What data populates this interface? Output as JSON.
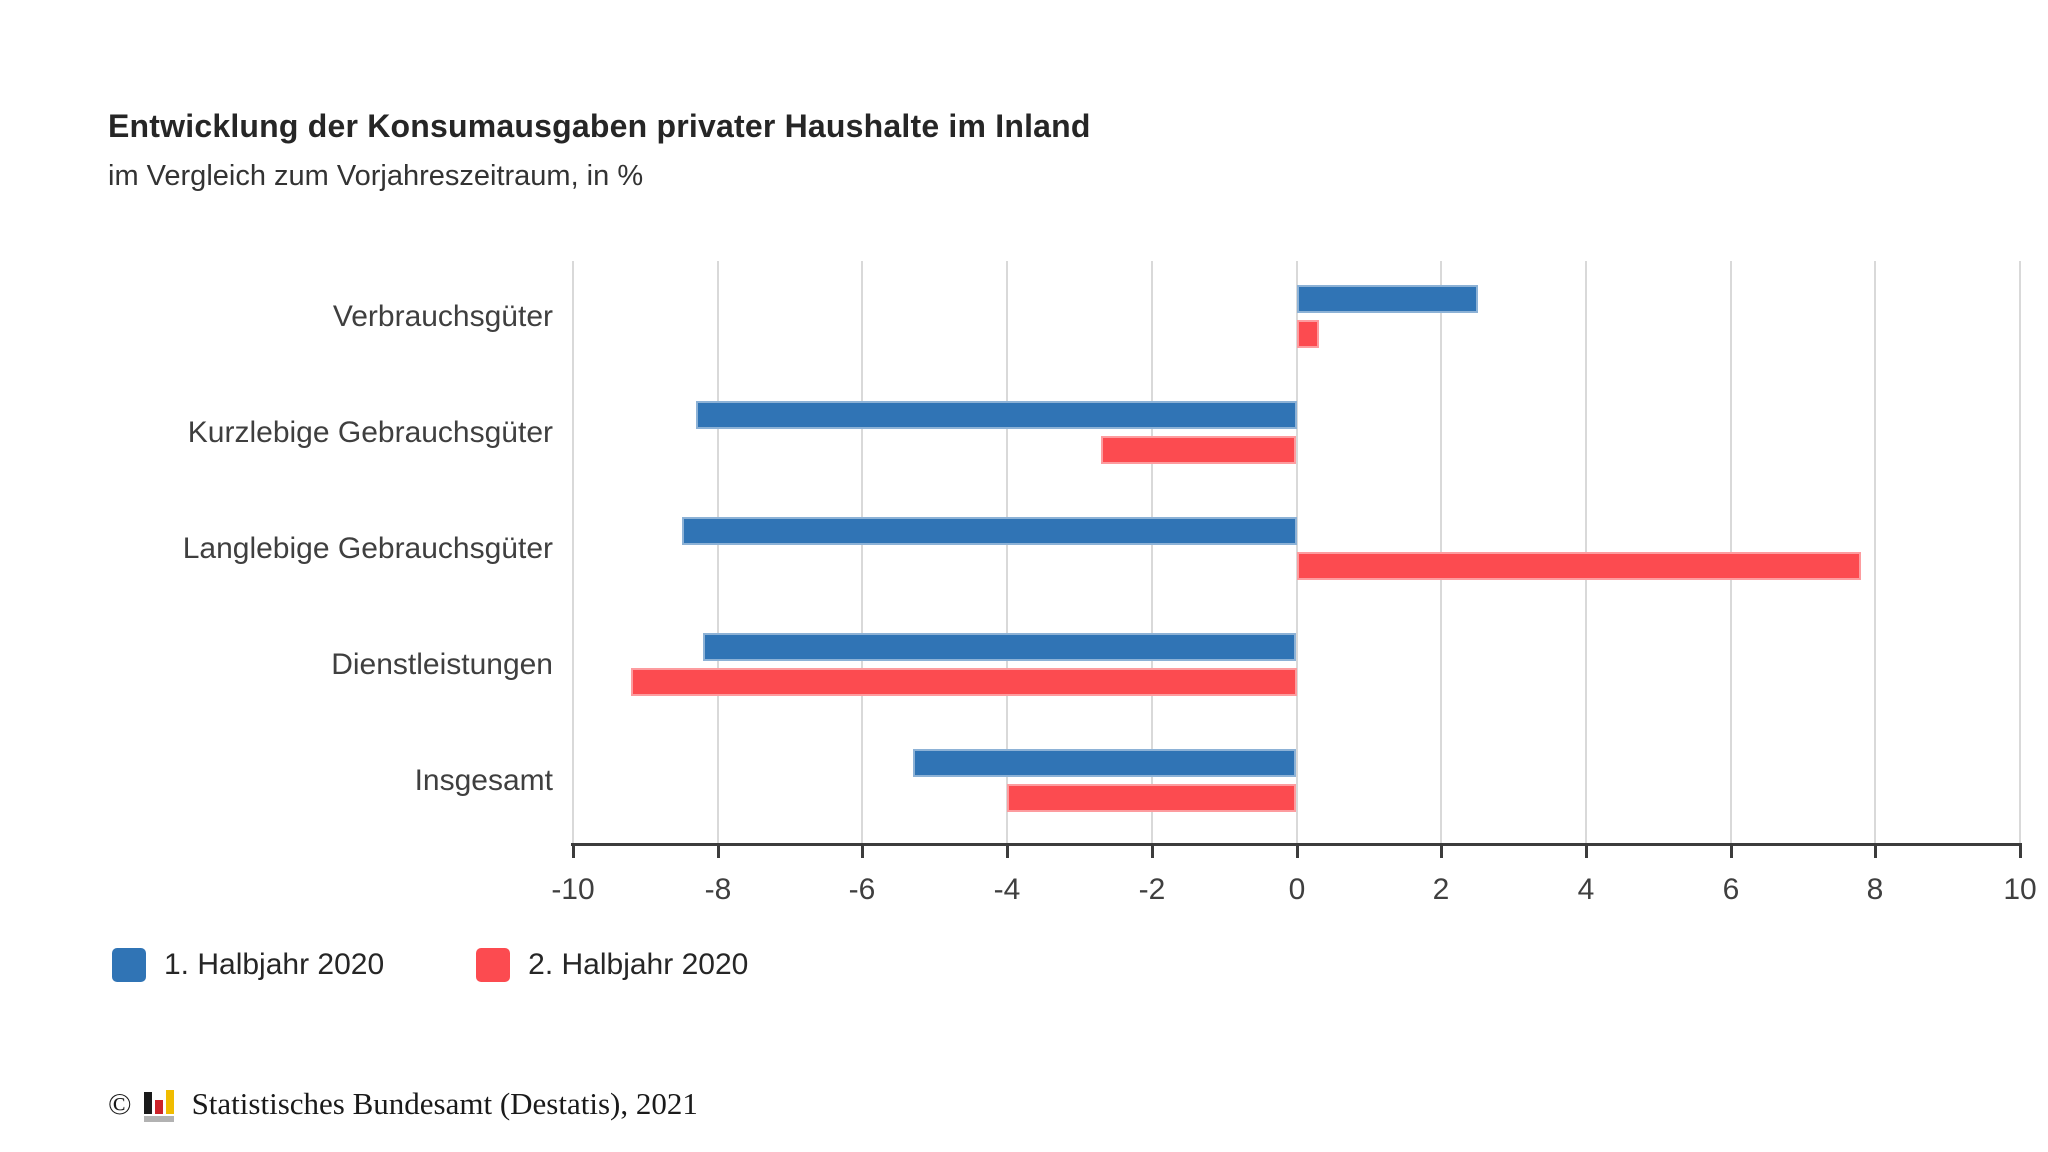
{
  "header": {
    "title": "Entwicklung der Konsumausgaben privater Haushalte im Inland",
    "subtitle": "im Vergleich zum Vorjahreszeitraum, in %"
  },
  "chart_data": {
    "type": "bar",
    "orientation": "horizontal",
    "title": "Entwicklung der Konsumausgaben privater Haushalte im Inland",
    "subtitle": "im Vergleich zum Vorjahreszeitraum, in %",
    "unit": "%",
    "categories": [
      "Verbrauchsgüter",
      "Kurzlebige Gebrauchsgüter",
      "Langlebige Gebrauchsgüter",
      "Dienstleistungen",
      "Insgesamt"
    ],
    "series": [
      {
        "name": "1. Halbjahr 2020",
        "color": "#3074B5",
        "values": [
          2.5,
          -8.3,
          -8.5,
          -8.2,
          -5.3
        ]
      },
      {
        "name": "2. Halbjahr 2020",
        "color": "#FC4B50",
        "values": [
          0.3,
          -2.7,
          7.8,
          -9.2,
          -4.0
        ]
      }
    ],
    "xlim": [
      -10,
      10
    ],
    "xticks": [
      -10,
      -8,
      -6,
      -4,
      -2,
      0,
      2,
      4,
      6,
      8,
      10
    ],
    "grid": "vertical",
    "legend_position": "bottom-left",
    "gridline_color": "#d9d9d9",
    "axis_color": "#3c3c3c",
    "label_color": "#3f3f3f"
  },
  "footer": {
    "copyright_symbol": "©",
    "source": "Statistisches Bundesamt (Destatis), 2021",
    "logo_icon": "destatis-bar-chart-logo",
    "logo_colors": [
      "#1a1a1a",
      "#cc2229",
      "#f0bc00",
      "#b2b2b2"
    ]
  }
}
